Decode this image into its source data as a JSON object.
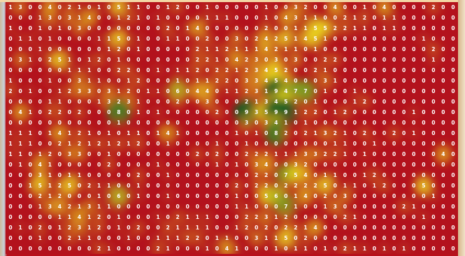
{
  "chart_data": {
    "type": "heatmap",
    "colormap": {
      "low": "#b3121d",
      "mid": "#f0e21f",
      "high": "#0d5f22"
    },
    "grid": false,
    "legend": false,
    "values": [
      [
        1,
        3,
        0,
        0,
        4,
        0,
        2,
        1,
        0,
        1,
        0,
        5,
        1,
        1,
        0,
        0,
        1,
        2,
        0,
        0,
        1,
        0,
        0,
        0,
        0,
        0,
        1,
        0,
        0,
        3,
        2,
        0,
        0,
        4,
        0,
        0,
        1,
        0,
        4,
        0,
        0,
        0,
        0,
        2,
        0,
        0
      ],
      [
        0,
        0,
        0,
        1,
        3,
        0,
        3,
        1,
        4,
        0,
        0,
        1,
        2,
        1,
        0,
        1,
        0,
        0,
        0,
        0,
        1,
        1,
        1,
        0,
        0,
        0,
        1,
        0,
        4,
        3,
        1,
        1,
        0,
        0,
        2,
        1,
        2,
        0,
        1,
        1,
        0,
        0,
        0,
        0,
        0,
        0
      ],
      [
        1,
        0,
        0,
        1,
        0,
        1,
        0,
        3,
        0,
        0,
        0,
        0,
        0,
        0,
        0,
        0,
        2,
        0,
        1,
        4,
        0,
        0,
        0,
        0,
        0,
        0,
        2,
        0,
        0,
        1,
        1,
        5,
        5,
        2,
        2,
        1,
        1,
        0,
        1,
        1,
        0,
        0,
        0,
        0,
        0,
        0
      ],
      [
        0,
        1,
        1,
        0,
        1,
        0,
        0,
        0,
        0,
        1,
        1,
        5,
        0,
        1,
        0,
        0,
        1,
        1,
        0,
        0,
        2,
        0,
        0,
        3,
        0,
        2,
        4,
        2,
        5,
        1,
        4,
        5,
        1,
        0,
        0,
        0,
        0,
        0,
        0,
        0,
        0,
        0,
        1,
        0,
        0,
        0
      ],
      [
        0,
        0,
        0,
        1,
        0,
        0,
        0,
        0,
        0,
        0,
        1,
        2,
        0,
        1,
        0,
        0,
        0,
        0,
        0,
        2,
        1,
        1,
        2,
        1,
        1,
        1,
        4,
        2,
        1,
        1,
        0,
        1,
        0,
        0,
        0,
        0,
        0,
        0,
        0,
        0,
        0,
        0,
        0,
        2,
        0,
        0
      ],
      [
        0,
        3,
        1,
        0,
        2,
        5,
        1,
        0,
        1,
        2,
        0,
        1,
        0,
        0,
        0,
        0,
        0,
        0,
        0,
        2,
        2,
        1,
        0,
        4,
        2,
        3,
        0,
        3,
        0,
        3,
        0,
        0,
        2,
        2,
        0,
        0,
        0,
        0,
        0,
        0,
        0,
        0,
        0,
        1,
        0,
        0
      ],
      [
        0,
        0,
        0,
        0,
        0,
        0,
        1,
        1,
        1,
        0,
        0,
        2,
        2,
        0,
        0,
        1,
        0,
        1,
        1,
        2,
        0,
        2,
        2,
        1,
        2,
        3,
        4,
        5,
        2,
        0,
        0,
        2,
        1,
        0,
        0,
        0,
        0,
        0,
        0,
        0,
        0,
        0,
        0,
        0,
        0,
        0
      ],
      [
        1,
        0,
        0,
        0,
        1,
        0,
        0,
        3,
        1,
        1,
        0,
        0,
        1,
        2,
        0,
        0,
        0,
        1,
        0,
        1,
        1,
        2,
        2,
        0,
        3,
        3,
        4,
        5,
        4,
        0,
        0,
        0,
        3,
        1,
        0,
        0,
        0,
        0,
        0,
        0,
        0,
        0,
        0,
        0,
        0,
        0
      ],
      [
        2,
        0,
        1,
        0,
        0,
        1,
        2,
        3,
        3,
        0,
        3,
        1,
        2,
        0,
        1,
        1,
        0,
        6,
        0,
        4,
        4,
        0,
        1,
        1,
        2,
        3,
        1,
        9,
        4,
        7,
        7,
        0,
        1,
        0,
        0,
        1,
        0,
        0,
        0,
        0,
        0,
        0,
        0,
        0,
        0,
        0
      ],
      [
        0,
        0,
        0,
        0,
        1,
        1,
        0,
        0,
        0,
        1,
        3,
        2,
        3,
        1,
        0,
        0,
        0,
        2,
        0,
        0,
        3,
        0,
        0,
        0,
        2,
        1,
        3,
        4,
        5,
        2,
        0,
        1,
        0,
        0,
        0,
        1,
        2,
        0,
        0,
        0,
        0,
        0,
        0,
        0,
        0,
        0
      ],
      [
        0,
        4,
        1,
        0,
        2,
        2,
        0,
        2,
        0,
        0,
        0,
        8,
        0,
        1,
        0,
        1,
        0,
        0,
        0,
        0,
        0,
        2,
        0,
        0,
        9,
        3,
        5,
        9,
        9,
        1,
        2,
        2,
        0,
        1,
        2,
        0,
        0,
        0,
        0,
        0,
        0,
        1,
        0,
        0,
        0,
        0
      ],
      [
        0,
        0,
        0,
        0,
        0,
        0,
        0,
        0,
        0,
        0,
        0,
        1,
        0,
        0,
        0,
        0,
        0,
        0,
        0,
        0,
        0,
        0,
        0,
        0,
        3,
        0,
        3,
        4,
        1,
        0,
        1,
        0,
        0,
        0,
        0,
        0,
        0,
        0,
        0,
        0,
        0,
        0,
        0,
        0,
        0,
        0
      ],
      [
        1,
        1,
        1,
        0,
        1,
        4,
        1,
        2,
        1,
        0,
        1,
        0,
        1,
        1,
        0,
        1,
        4,
        1,
        0,
        0,
        0,
        0,
        0,
        1,
        0,
        1,
        0,
        8,
        2,
        0,
        2,
        1,
        3,
        2,
        1,
        0,
        2,
        0,
        0,
        2,
        0,
        1,
        0,
        0,
        0,
        0
      ],
      [
        1,
        1,
        1,
        0,
        0,
        2,
        1,
        2,
        1,
        2,
        1,
        2,
        1,
        2,
        0,
        0,
        1,
        0,
        0,
        0,
        0,
        1,
        0,
        0,
        1,
        0,
        0,
        0,
        0,
        0,
        0,
        0,
        0,
        1,
        1,
        0,
        0,
        1,
        0,
        0,
        0,
        0,
        0,
        0,
        0,
        0
      ],
      [
        1,
        1,
        0,
        1,
        2,
        0,
        3,
        3,
        0,
        0,
        1,
        0,
        0,
        0,
        0,
        0,
        0,
        0,
        0,
        2,
        0,
        2,
        0,
        0,
        2,
        2,
        2,
        1,
        1,
        1,
        3,
        3,
        2,
        2,
        1,
        0,
        1,
        0,
        0,
        0,
        0,
        0,
        0,
        0,
        4,
        0
      ],
      [
        0,
        1,
        0,
        4,
        1,
        0,
        0,
        0,
        0,
        0,
        2,
        0,
        0,
        0,
        0,
        1,
        0,
        0,
        0,
        0,
        0,
        1,
        0,
        1,
        0,
        3,
        4,
        0,
        0,
        3,
        2,
        0,
        0,
        0,
        0,
        0,
        0,
        0,
        0,
        0,
        0,
        0,
        0,
        0,
        0,
        0
      ],
      [
        0,
        0,
        0,
        3,
        1,
        0,
        1,
        1,
        0,
        0,
        0,
        0,
        0,
        2,
        0,
        0,
        1,
        0,
        0,
        0,
        0,
        0,
        0,
        0,
        0,
        2,
        2,
        0,
        7,
        5,
        4,
        0,
        1,
        1,
        0,
        0,
        1,
        2,
        0,
        0,
        0,
        0,
        0,
        0,
        0,
        0
      ],
      [
        0,
        0,
        1,
        5,
        1,
        2,
        5,
        0,
        2,
        1,
        1,
        0,
        0,
        1,
        0,
        0,
        0,
        0,
        0,
        0,
        0,
        0,
        0,
        2,
        0,
        2,
        2,
        0,
        2,
        2,
        2,
        2,
        5,
        0,
        1,
        1,
        0,
        1,
        2,
        0,
        0,
        0,
        5,
        0,
        0,
        0
      ],
      [
        0,
        0,
        0,
        2,
        1,
        2,
        0,
        0,
        0,
        1,
        0,
        6,
        0,
        1,
        0,
        0,
        1,
        0,
        0,
        0,
        0,
        0,
        0,
        1,
        0,
        0,
        5,
        6,
        0,
        1,
        4,
        0,
        2,
        0,
        3,
        0,
        0,
        0,
        0,
        0,
        0,
        0,
        0,
        1,
        0,
        0
      ],
      [
        0,
        0,
        0,
        1,
        3,
        4,
        2,
        1,
        3,
        1,
        1,
        0,
        0,
        0,
        0,
        0,
        0,
        0,
        0,
        0,
        0,
        0,
        0,
        1,
        1,
        0,
        0,
        0,
        7,
        1,
        0,
        0,
        1,
        3,
        0,
        0,
        0,
        0,
        0,
        0,
        2,
        1,
        0,
        0,
        0,
        0
      ],
      [
        0,
        0,
        0,
        0,
        0,
        1,
        1,
        4,
        1,
        2,
        0,
        1,
        0,
        0,
        0,
        1,
        0,
        2,
        1,
        1,
        1,
        0,
        0,
        0,
        2,
        2,
        3,
        1,
        2,
        0,
        0,
        0,
        0,
        0,
        2,
        1,
        0,
        0,
        0,
        0,
        0,
        0,
        1,
        0,
        0,
        0
      ],
      [
        0,
        1,
        0,
        2,
        0,
        1,
        2,
        3,
        1,
        2,
        0,
        1,
        0,
        2,
        0,
        0,
        2,
        1,
        1,
        1,
        1,
        0,
        0,
        1,
        2,
        0,
        2,
        0,
        2,
        2,
        1,
        4,
        0,
        0,
        0,
        0,
        0,
        0,
        0,
        0,
        0,
        0,
        0,
        0,
        0,
        0
      ],
      [
        0,
        0,
        0,
        1,
        0,
        0,
        2,
        1,
        1,
        0,
        0,
        0,
        1,
        0,
        0,
        1,
        1,
        1,
        2,
        2,
        0,
        1,
        1,
        0,
        0,
        3,
        1,
        1,
        5,
        0,
        2,
        0,
        0,
        0,
        0,
        0,
        0,
        0,
        0,
        0,
        0,
        0,
        0,
        0,
        0,
        0
      ],
      [
        0,
        0,
        0,
        0,
        0,
        0,
        0,
        0,
        0,
        2,
        1,
        0,
        0,
        0,
        0,
        2,
        1,
        0,
        0,
        0,
        1,
        0,
        4,
        1,
        0,
        0,
        0,
        1,
        0,
        1,
        1,
        0,
        1,
        0,
        2,
        1,
        1,
        0,
        1,
        0,
        1,
        0,
        0,
        0,
        0,
        0
      ]
    ]
  }
}
